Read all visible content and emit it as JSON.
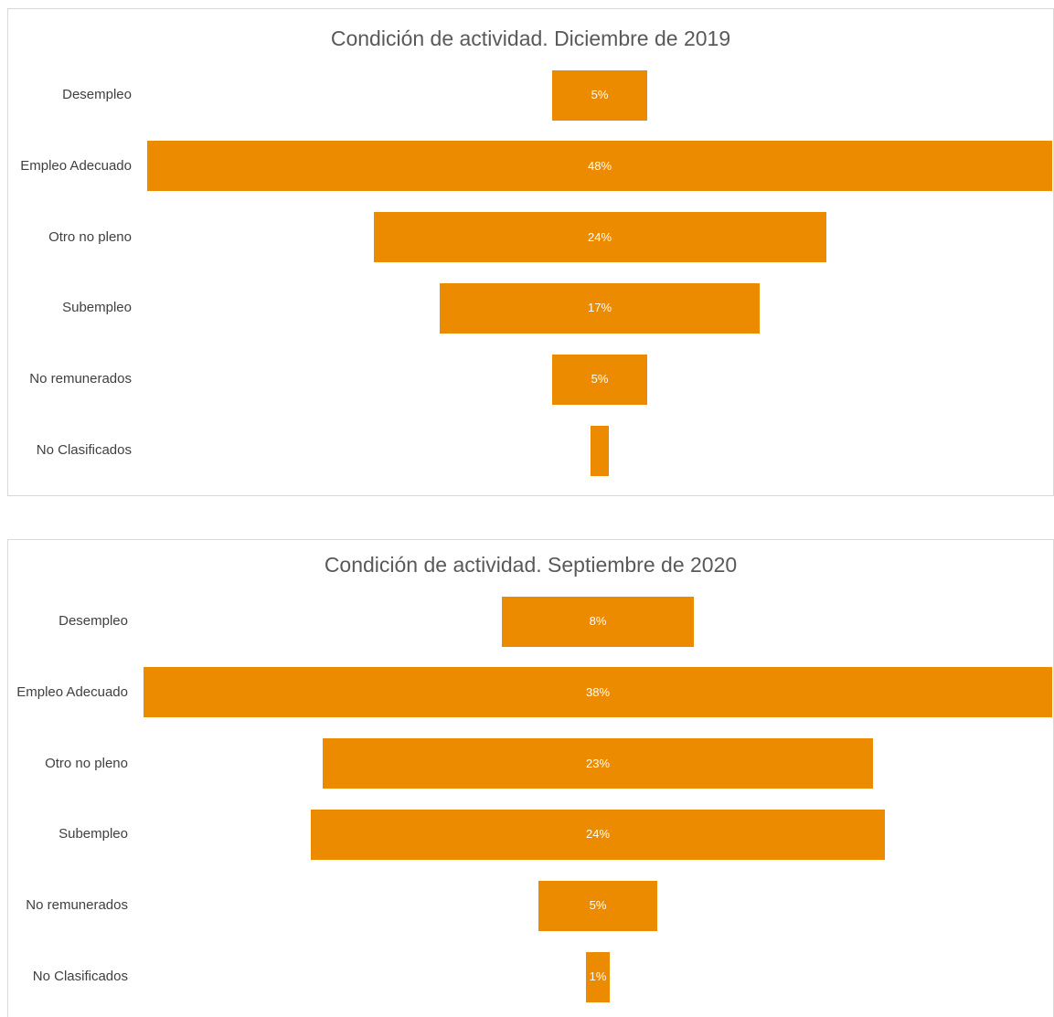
{
  "chart_data": [
    {
      "type": "bar",
      "title": "Condición de actividad. Diciembre de 2019",
      "categories": [
        "Desempleo",
        "Empleo Adecuado",
        "Otro no pleno",
        "Subempleo",
        "No remunerados",
        "No Clasificados"
      ],
      "values": [
        5,
        48,
        24,
        17,
        5,
        1
      ],
      "data_labels": [
        "5%",
        "48%",
        "24%",
        "17%",
        "5%",
        ""
      ],
      "orientation": "horizontal-funnel",
      "unit": "%",
      "grid": false,
      "color": "#ed8b00"
    },
    {
      "type": "bar",
      "title": "Condición de actividad. Septiembre de 2020",
      "categories": [
        "Desempleo",
        "Empleo Adecuado",
        "Otro no pleno",
        "Subempleo",
        "No remunerados",
        "No Clasificados"
      ],
      "values": [
        8,
        38,
        23,
        24,
        5,
        1
      ],
      "data_labels": [
        "8%",
        "38%",
        "23%",
        "24%",
        "5%",
        "1%"
      ],
      "orientation": "horizontal-funnel",
      "unit": "%",
      "grid": false,
      "color": "#ed8b00"
    }
  ]
}
